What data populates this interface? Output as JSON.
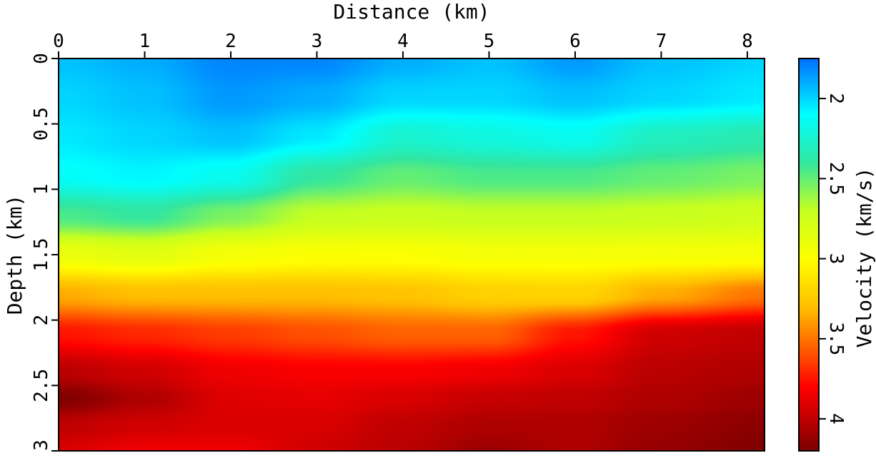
{
  "chart_data": {
    "type": "heatmap",
    "xlabel": "Distance (km)",
    "ylabel": "Depth (km)",
    "colorbar_label": "Velocity (km/s)",
    "x_range": [
      0,
      8.2
    ],
    "y_range": [
      0,
      3
    ],
    "x_axis_position": "top",
    "y_axis_inverted": true,
    "x_ticks": [
      {
        "value": 0,
        "label": "0"
      },
      {
        "value": 1,
        "label": "1"
      },
      {
        "value": 2,
        "label": "2"
      },
      {
        "value": 3,
        "label": "3"
      },
      {
        "value": 4,
        "label": "4"
      },
      {
        "value": 5,
        "label": "5"
      },
      {
        "value": 6,
        "label": "6"
      },
      {
        "value": 7,
        "label": "7"
      },
      {
        "value": 8,
        "label": "8"
      }
    ],
    "y_ticks": [
      {
        "value": 0,
        "label": "0"
      },
      {
        "value": 0.5,
        "label": "0.5"
      },
      {
        "value": 1,
        "label": "1"
      },
      {
        "value": 1.5,
        "label": "1.5"
      },
      {
        "value": 2,
        "label": "2"
      },
      {
        "value": 2.5,
        "label": "2.5"
      },
      {
        "value": 3,
        "label": "3"
      }
    ],
    "colorbar_range": [
      1.75,
      4.2
    ],
    "colorbar_inverted": true,
    "colorbar_ticks": [
      {
        "value": 2,
        "label": "2"
      },
      {
        "value": 2.5,
        "label": "2.5"
      },
      {
        "value": 3,
        "label": "3"
      },
      {
        "value": 3.5,
        "label": "3.5"
      },
      {
        "value": 4,
        "label": "4"
      }
    ],
    "colormap": [
      {
        "v": 1.75,
        "color": "#0070ff"
      },
      {
        "v": 2.1,
        "color": "#00ffff"
      },
      {
        "v": 2.4,
        "color": "#33e6a0"
      },
      {
        "v": 2.7,
        "color": "#c6ff20"
      },
      {
        "v": 3.0,
        "color": "#ffff00"
      },
      {
        "v": 3.3,
        "color": "#ffc000"
      },
      {
        "v": 3.6,
        "color": "#ff5000"
      },
      {
        "v": 3.8,
        "color": "#ff0000"
      },
      {
        "v": 4.0,
        "color": "#c00000"
      },
      {
        "v": 4.2,
        "color": "#7a0000"
      }
    ],
    "velocity_profiles": {
      "x": [
        0,
        1,
        2,
        3,
        4,
        5,
        6,
        7,
        8.2
      ],
      "depths": [
        0,
        0.3,
        0.6,
        0.9,
        1.2,
        1.5,
        1.8,
        2.1,
        2.4,
        2.6,
        2.8,
        3.0
      ],
      "v": [
        [
          1.95,
          2.0,
          2.05,
          2.12,
          2.45,
          2.9,
          3.35,
          3.75,
          4.02,
          4.18,
          4.0,
          3.92
        ],
        [
          1.9,
          1.95,
          2.0,
          2.08,
          2.4,
          2.85,
          3.3,
          3.7,
          3.95,
          4.05,
          3.95,
          3.85
        ],
        [
          1.8,
          1.85,
          1.95,
          2.15,
          2.55,
          2.95,
          3.3,
          3.65,
          3.85,
          3.9,
          3.92,
          3.85
        ],
        [
          1.8,
          1.9,
          2.05,
          2.4,
          2.7,
          2.98,
          3.3,
          3.6,
          3.82,
          3.88,
          3.92,
          3.95
        ],
        [
          1.9,
          2.0,
          2.25,
          2.5,
          2.72,
          2.98,
          3.28,
          3.55,
          3.82,
          3.92,
          4.0,
          4.02
        ],
        [
          1.95,
          2.0,
          2.2,
          2.45,
          2.7,
          2.95,
          3.22,
          3.55,
          3.85,
          3.98,
          4.05,
          4.1
        ],
        [
          1.85,
          1.95,
          2.15,
          2.45,
          2.7,
          2.95,
          3.2,
          3.75,
          3.92,
          4.0,
          4.05,
          4.05
        ],
        [
          1.95,
          2.0,
          2.3,
          2.5,
          2.72,
          2.95,
          3.35,
          3.95,
          4.02,
          4.05,
          4.1,
          4.12
        ],
        [
          2.0,
          2.05,
          2.35,
          2.55,
          2.75,
          2.95,
          3.5,
          4.0,
          4.05,
          4.1,
          4.15,
          4.18
        ]
      ]
    }
  }
}
